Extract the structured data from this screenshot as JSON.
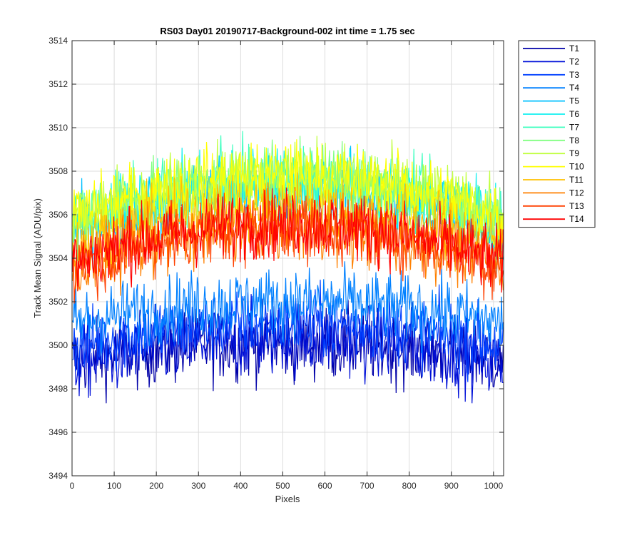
{
  "chart_data": {
    "type": "line",
    "title": "RS03 Day01 20190717-Background-002 int time = 1.75 sec",
    "xlabel": "Pixels",
    "ylabel": "Track Mean Signal (ADU/pix)",
    "xlim": [
      0,
      1024
    ],
    "ylim": [
      3494,
      3514
    ],
    "xticks": [
      0,
      100,
      200,
      300,
      400,
      500,
      600,
      700,
      800,
      900,
      1000
    ],
    "yticks": [
      3494,
      3496,
      3498,
      3500,
      3502,
      3504,
      3506,
      3508,
      3510,
      3512,
      3514
    ],
    "grid": true,
    "legend_position": "outside-top-right",
    "series": [
      {
        "name": "T1",
        "color": "#0000a8",
        "edge_level": 3499.3,
        "center_level": 3500.1,
        "noise_amplitude": 1.6
      },
      {
        "name": "T2",
        "color": "#0010d8",
        "edge_level": 3499.1,
        "center_level": 3500.3,
        "noise_amplitude": 1.6
      },
      {
        "name": "T3",
        "color": "#0040ff",
        "edge_level": 3500.0,
        "center_level": 3501.0,
        "noise_amplitude": 1.5
      },
      {
        "name": "T4",
        "color": "#0080ff",
        "edge_level": 3501.0,
        "center_level": 3502.0,
        "noise_amplitude": 1.5
      },
      {
        "name": "T5",
        "color": "#00c0ff",
        "edge_level": 3505.3,
        "center_level": 3507.2,
        "noise_amplitude": 1.5
      },
      {
        "name": "T6",
        "color": "#10f0f0",
        "edge_level": 3505.5,
        "center_level": 3507.5,
        "noise_amplitude": 1.5
      },
      {
        "name": "T7",
        "color": "#40ffc0",
        "edge_level": 3505.6,
        "center_level": 3507.6,
        "noise_amplitude": 1.5
      },
      {
        "name": "T8",
        "color": "#80ff80",
        "edge_level": 3505.7,
        "center_level": 3507.7,
        "noise_amplitude": 1.5
      },
      {
        "name": "T9",
        "color": "#c0ff40",
        "edge_level": 3505.8,
        "center_level": 3507.8,
        "noise_amplitude": 1.5
      },
      {
        "name": "T10",
        "color": "#ffff00",
        "edge_level": 3505.8,
        "center_level": 3507.8,
        "noise_amplitude": 1.5
      },
      {
        "name": "T11",
        "color": "#ffc000",
        "edge_level": 3504.5,
        "center_level": 3506.3,
        "noise_amplitude": 1.5
      },
      {
        "name": "T12",
        "color": "#ff8000",
        "edge_level": 3503.6,
        "center_level": 3505.4,
        "noise_amplitude": 1.5
      },
      {
        "name": "T13",
        "color": "#ff4000",
        "edge_level": 3503.6,
        "center_level": 3505.4,
        "noise_amplitude": 1.5
      },
      {
        "name": "T14",
        "color": "#ff0000",
        "edge_level": 3503.8,
        "center_level": 3505.6,
        "noise_amplitude": 1.5
      }
    ]
  }
}
